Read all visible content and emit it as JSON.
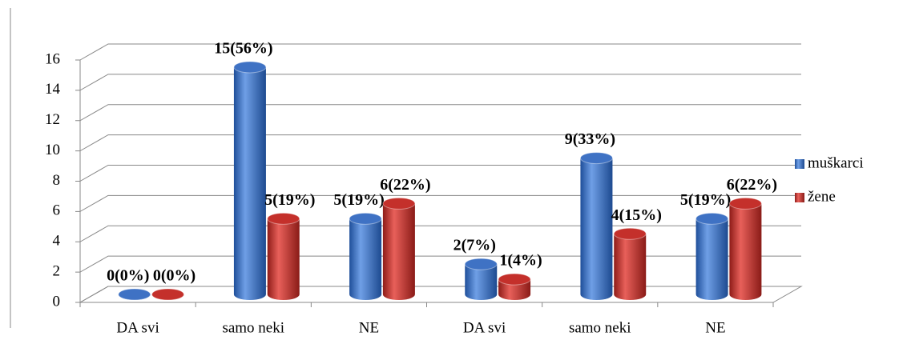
{
  "chart_data": {
    "type": "bar3d",
    "categories": [
      "DA svi",
      "samo neki",
      "NE",
      "DA svi",
      "samo neki",
      "NE"
    ],
    "series": [
      {
        "name": "muškarci",
        "color": "#3f72c4",
        "values": [
          0,
          15,
          5,
          2,
          9,
          5
        ],
        "value_labels": [
          "0(0%)",
          "15(56%)",
          "5(19%)",
          "2(7%)",
          "9(33%)",
          "5(19%)"
        ]
      },
      {
        "name": "žene",
        "color": "#c4302b",
        "values": [
          0,
          5,
          6,
          1,
          4,
          6
        ],
        "value_labels": [
          "0(0%)",
          "5(19%)",
          "6(22%)",
          "1(4%)",
          "4(15%)",
          "6(22%)"
        ]
      }
    ],
    "ylim": [
      0,
      16
    ],
    "yticks": [
      0,
      2,
      4,
      6,
      8,
      10,
      12,
      14,
      16
    ],
    "grid": true,
    "legend": "right"
  }
}
